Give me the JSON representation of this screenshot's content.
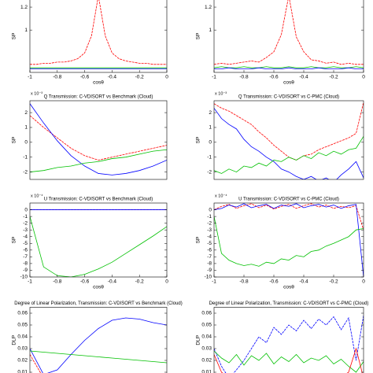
{
  "chart_data": [
    {
      "type": "line",
      "ylabel": "SP",
      "xlabel": "cosθ",
      "xlim": [
        -1,
        0
      ],
      "ylim": [
        0.63,
        1.3
      ],
      "xticks": [
        -1,
        -0.8,
        -0.6,
        -0.4,
        -0.2,
        0
      ],
      "yticks": [
        1,
        1.2
      ],
      "x": [
        -1,
        -0.95,
        -0.9,
        -0.85,
        -0.8,
        -0.75,
        -0.7,
        -0.65,
        -0.6,
        -0.55,
        -0.5,
        -0.45,
        -0.4,
        -0.35,
        -0.3,
        -0.25,
        -0.2,
        -0.15,
        -0.1,
        -0.05,
        0
      ],
      "series": [
        {
          "color": "#ff0000",
          "values": [
            0.7,
            0.7,
            0.71,
            0.71,
            0.72,
            0.72,
            0.73,
            0.75,
            0.8,
            0.95,
            1.3,
            0.95,
            0.8,
            0.75,
            0.73,
            0.72,
            0.71,
            0.71,
            0.7,
            0.7,
            0.7
          ]
        },
        {
          "color": "#00c000",
          "values": [
            0.67,
            0.67,
            0.67,
            0.67,
            0.67,
            0.67,
            0.67,
            0.67,
            0.67,
            0.67,
            0.67,
            0.67,
            0.67,
            0.67,
            0.67,
            0.67,
            0.67,
            0.67,
            0.67,
            0.67,
            0.67
          ]
        },
        {
          "color": "#0000ff",
          "values": [
            0.66,
            0.66,
            0.66,
            0.66,
            0.66,
            0.66,
            0.66,
            0.66,
            0.66,
            0.66,
            0.66,
            0.66,
            0.66,
            0.66,
            0.66,
            0.66,
            0.66,
            0.66,
            0.66,
            0.66,
            0.66
          ]
        }
      ]
    },
    {
      "type": "line",
      "ylabel": "SP",
      "xlabel": "cosθ",
      "xlim": [
        -1,
        0
      ],
      "ylim": [
        0.63,
        1.3
      ],
      "xticks": [
        -1,
        -0.8,
        -0.6,
        -0.4,
        -0.2,
        0
      ],
      "yticks": [
        1,
        1.2
      ],
      "x": [
        -1,
        -0.95,
        -0.9,
        -0.85,
        -0.8,
        -0.75,
        -0.7,
        -0.65,
        -0.6,
        -0.55,
        -0.5,
        -0.45,
        -0.4,
        -0.35,
        -0.3,
        -0.25,
        -0.2,
        -0.15,
        -0.1,
        -0.05,
        0
      ],
      "series": [
        {
          "color": "#ff0000",
          "values": [
            0.7,
            0.71,
            0.7,
            0.71,
            0.72,
            0.73,
            0.72,
            0.76,
            0.81,
            0.96,
            1.3,
            0.94,
            0.81,
            0.74,
            0.73,
            0.71,
            0.72,
            0.7,
            0.71,
            0.7,
            0.7
          ]
        },
        {
          "color": "#00c000",
          "values": [
            0.67,
            0.68,
            0.67,
            0.67,
            0.68,
            0.67,
            0.67,
            0.68,
            0.67,
            0.67,
            0.68,
            0.67,
            0.67,
            0.68,
            0.67,
            0.67,
            0.68,
            0.67,
            0.67,
            0.68,
            0.67
          ]
        },
        {
          "color": "#0000ff",
          "values": [
            0.66,
            0.66,
            0.67,
            0.66,
            0.66,
            0.66,
            0.67,
            0.66,
            0.66,
            0.66,
            0.67,
            0.66,
            0.66,
            0.66,
            0.67,
            0.66,
            0.66,
            0.66,
            0.67,
            0.66,
            0.66
          ]
        }
      ]
    },
    {
      "type": "line",
      "title": "Q Transmission: C-VDISORT vs Benchmark (Cloud)",
      "exponent": "x 10⁻³",
      "ylabel": "SP",
      "xlim": [
        -1,
        0
      ],
      "ylim": [
        -2.5,
        2.8
      ],
      "yticks": [
        -2,
        -1,
        0,
        1,
        2
      ],
      "x": [
        -1,
        -0.9,
        -0.8,
        -0.7,
        -0.6,
        -0.5,
        -0.4,
        -0.3,
        -0.2,
        -0.1,
        0
      ],
      "series": [
        {
          "color": "#ff0000",
          "values": [
            1.8,
            1.0,
            0.3,
            -0.4,
            -0.9,
            -1.2,
            -1.0,
            -0.8,
            -0.6,
            -0.4,
            -0.2
          ]
        },
        {
          "color": "#0000ff",
          "values": [
            2.6,
            1.3,
            0.1,
            -0.9,
            -1.6,
            -2.1,
            -2.2,
            -2.1,
            -1.9,
            -1.6,
            -1.2
          ]
        },
        {
          "color": "#00c000",
          "values": [
            -2.0,
            -1.9,
            -1.7,
            -1.6,
            -1.4,
            -1.3,
            -1.1,
            -1.0,
            -0.8,
            -0.6,
            -0.5
          ]
        }
      ]
    },
    {
      "type": "line",
      "title": "Q Transmission: C-VDISORT vs C-PMC (Cloud)",
      "exponent": "x 10⁻³",
      "ylabel": "SP",
      "xlim": [
        -1,
        0
      ],
      "ylim": [
        -2.5,
        2.8
      ],
      "yticks": [
        -2,
        -1,
        0,
        1,
        2
      ],
      "x": [
        -1,
        -0.95,
        -0.9,
        -0.85,
        -0.8,
        -0.75,
        -0.7,
        -0.65,
        -0.6,
        -0.55,
        -0.5,
        -0.45,
        -0.4,
        -0.35,
        -0.3,
        -0.25,
        -0.2,
        -0.15,
        -0.1,
        -0.05,
        0
      ],
      "series": [
        {
          "color": "#ff0000",
          "values": [
            2.6,
            2.3,
            2.1,
            1.8,
            1.5,
            1.2,
            0.7,
            0.3,
            -0.2,
            -0.6,
            -1.0,
            -1.2,
            -0.9,
            -0.8,
            -0.5,
            -0.3,
            -0.1,
            0.1,
            0.3,
            0.6,
            2.7
          ]
        },
        {
          "color": "#0000ff",
          "values": [
            2.3,
            1.6,
            1.2,
            0.9,
            0.2,
            -0.3,
            -0.6,
            -1.0,
            -1.3,
            -1.8,
            -2.0,
            -2.3,
            -2.5,
            -2.3,
            -2.6,
            -2.4,
            -2.7,
            -2.2,
            -1.8,
            -1.3,
            -2.4
          ]
        },
        {
          "color": "#00c000",
          "values": [
            -1.9,
            -2.1,
            -1.8,
            -2.0,
            -1.6,
            -1.7,
            -1.4,
            -1.6,
            -1.2,
            -1.3,
            -1.0,
            -1.2,
            -0.9,
            -1.1,
            -0.7,
            -0.9,
            -0.6,
            -0.8,
            -0.5,
            -0.4,
            0.4
          ]
        }
      ]
    },
    {
      "type": "line",
      "title": "U Transmission: C-VDISORT vs Benchmark (Cloud)",
      "exponent": "x 10⁻⁴",
      "ylabel": "SP",
      "xlabel": "cosθ",
      "xlim": [
        -1,
        0
      ],
      "ylim": [
        -10,
        1
      ],
      "xticks": [
        -1,
        -0.8,
        -0.6,
        -0.4,
        -0.2,
        0
      ],
      "yticks": [
        -10,
        -9,
        -8,
        -7,
        -6,
        -5,
        -4,
        -3,
        -2,
        -1,
        0
      ],
      "x": [
        -1,
        -0.9,
        -0.8,
        -0.7,
        -0.6,
        -0.5,
        -0.4,
        -0.3,
        -0.2,
        -0.1,
        0
      ],
      "series": [
        {
          "color": "#ff0000",
          "values": [
            0,
            0,
            0,
            0,
            0,
            0,
            0,
            0,
            0,
            0,
            0
          ]
        },
        {
          "color": "#0000ff",
          "values": [
            0,
            0,
            0,
            0,
            0,
            0,
            0,
            0,
            0,
            0,
            0
          ]
        },
        {
          "color": "#00c000",
          "values": [
            -1,
            -8.5,
            -9.8,
            -10,
            -9.6,
            -8.8,
            -7.8,
            -6.5,
            -5.2,
            -3.9,
            -2.5
          ]
        }
      ]
    },
    {
      "type": "line",
      "title": "U Transmission: C-VDISORT vs C-PMC (Cloud)",
      "exponent": "x 10⁻⁴",
      "ylabel": "SP",
      "xlabel": "cosθ",
      "xlim": [
        -1,
        0
      ],
      "ylim": [
        -10,
        1
      ],
      "xticks": [
        -1,
        -0.8,
        -0.6,
        -0.4,
        -0.2,
        0
      ],
      "yticks": [
        -10,
        -9,
        -8,
        -7,
        -6,
        -5,
        -4,
        -3,
        -2,
        -1,
        0
      ],
      "x": [
        -1,
        -0.95,
        -0.9,
        -0.85,
        -0.8,
        -0.75,
        -0.7,
        -0.65,
        -0.6,
        -0.55,
        -0.5,
        -0.45,
        -0.4,
        -0.35,
        -0.3,
        -0.25,
        -0.2,
        -0.15,
        -0.1,
        -0.05,
        0
      ],
      "series": [
        {
          "color": "#ff0000",
          "values": [
            0,
            0.5,
            0.8,
            0.2,
            0.6,
            0.9,
            0.3,
            0.7,
            0.1,
            0.5,
            0.8,
            0.2,
            0.6,
            0.9,
            0.4,
            0.7,
            0.2,
            0.5,
            0.3,
            0.6,
            -3
          ]
        },
        {
          "color": "#0000ff",
          "values": [
            0,
            0.2,
            0.7,
            0.4,
            0.9,
            0.3,
            0.6,
            0.8,
            0.2,
            0.7,
            0.5,
            0.9,
            0.3,
            0.6,
            0.8,
            0.4,
            0.7,
            0.2,
            0.6,
            0.8,
            -10
          ]
        },
        {
          "color": "#00c000",
          "values": [
            -1,
            -6.5,
            -7.5,
            -8,
            -8.3,
            -8.1,
            -8.4,
            -7.8,
            -8,
            -7.3,
            -7.5,
            -6.8,
            -7,
            -6.2,
            -6,
            -5.4,
            -5,
            -4.5,
            -4,
            -3,
            -2.8
          ]
        }
      ]
    },
    {
      "type": "line",
      "title": "Degree of Linear Polarization, Transmission: C-VDISORT vs Benchmark (Cloud)",
      "ylabel": "DLP",
      "xlim": [
        -1,
        0
      ],
      "ylim": [
        0,
        0.065
      ],
      "yticks": [
        0.01,
        0.02,
        0.03,
        0.04,
        0.05,
        0.06
      ],
      "x": [
        -1,
        -0.9,
        -0.8,
        -0.7,
        -0.6,
        -0.5,
        -0.4,
        -0.3,
        -0.2,
        -0.1,
        0
      ],
      "series": [
        {
          "color": "#ff0000",
          "values": [
            0.025,
            0.005,
            0.003,
            0.004,
            0.002,
            0.004,
            0.002,
            0.004,
            0.003,
            0.004,
            0.003
          ]
        },
        {
          "color": "#0000ff",
          "values": [
            0.03,
            0.008,
            0.012,
            0.025,
            0.037,
            0.047,
            0.054,
            0.056,
            0.055,
            0.052,
            0.05
          ]
        },
        {
          "color": "#00c000",
          "values": [
            0.028,
            0.027,
            0.026,
            0.025,
            0.024,
            0.023,
            0.022,
            0.021,
            0.02,
            0.019,
            0.018
          ]
        }
      ]
    },
    {
      "type": "line",
      "title": "Degree of Linear Polarization, Transmission: C-VDISORT vs C-PMC (Cloud)",
      "ylabel": "DLP",
      "xlim": [
        -1,
        0
      ],
      "ylim": [
        0,
        0.065
      ],
      "yticks": [
        0.01,
        0.02,
        0.03,
        0.04,
        0.05,
        0.06
      ],
      "x": [
        -1,
        -0.95,
        -0.9,
        -0.85,
        -0.8,
        -0.75,
        -0.7,
        -0.65,
        -0.6,
        -0.55,
        -0.5,
        -0.45,
        -0.4,
        -0.35,
        -0.3,
        -0.25,
        -0.2,
        -0.15,
        -0.1,
        -0.05,
        0
      ],
      "series": [
        {
          "color": "#0000ff",
          "values": [
            0.03,
            0.015,
            0.005,
            0.012,
            0.02,
            0.03,
            0.04,
            0.035,
            0.048,
            0.042,
            0.05,
            0.045,
            0.054,
            0.047,
            0.055,
            0.05,
            0.057,
            0.046,
            0.056,
            0.02,
            0.058
          ]
        },
        {
          "color": "#00c000",
          "values": [
            0.028,
            0.022,
            0.018,
            0.025,
            0.016,
            0.024,
            0.02,
            0.026,
            0.017,
            0.023,
            0.019,
            0.025,
            0.018,
            0.022,
            0.02,
            0.024,
            0.017,
            0.021,
            0.015,
            0.01,
            0.019
          ]
        },
        {
          "color": "#ff0000",
          "values": [
            0.025,
            0.01,
            0.005,
            0.008,
            0.003,
            0.006,
            0.004,
            0.007,
            0.003,
            0.006,
            0.004,
            0.008,
            0.003,
            0.005,
            0.004,
            0.007,
            0.003,
            0.006,
            0.01,
            0.03,
            0.005
          ]
        }
      ]
    }
  ]
}
